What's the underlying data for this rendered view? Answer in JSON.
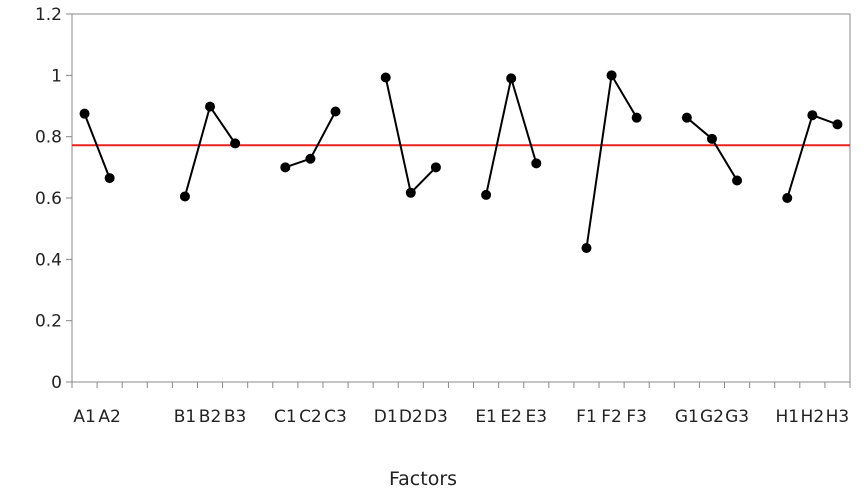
{
  "chart_data": {
    "type": "line",
    "title": "",
    "xlabel": "Factors",
    "ylabel": "",
    "ylim": [
      0,
      1.2
    ],
    "yticks": [
      "0",
      "0.2",
      "0.4",
      "0.6",
      "0.8",
      "1",
      "1.2"
    ],
    "grid": false,
    "legend": "none",
    "line_color": "#000000",
    "reference_line": {
      "value": 0.772,
      "color": "#e8231f"
    },
    "categories": [
      "A1",
      "A2",
      "",
      "",
      "B1",
      "B2",
      "B3",
      "",
      "C1",
      "C2",
      "C3",
      "",
      "D1",
      "D2",
      "D3",
      "",
      "E1",
      "E2",
      "E3",
      "",
      "F1",
      "F2",
      "F3",
      "",
      "G1",
      "G2",
      "G3",
      "",
      "H1",
      "H2",
      "H3"
    ],
    "groups": [
      {
        "labels": [
          "A1",
          "A2"
        ],
        "values": [
          0.875,
          0.665
        ]
      },
      {
        "labels": [
          "B1",
          "B2",
          "B3"
        ],
        "values": [
          0.605,
          0.898,
          0.778
        ]
      },
      {
        "labels": [
          "C1",
          "C2",
          "C3"
        ],
        "values": [
          0.7,
          0.728,
          0.882
        ]
      },
      {
        "labels": [
          "D1",
          "D2",
          "D3"
        ],
        "values": [
          0.993,
          0.617,
          0.7
        ]
      },
      {
        "labels": [
          "E1",
          "E2",
          "E3"
        ],
        "values": [
          0.61,
          0.99,
          0.713
        ]
      },
      {
        "labels": [
          "F1",
          "F2",
          "F3"
        ],
        "values": [
          0.437,
          1.0,
          0.862
        ]
      },
      {
        "labels": [
          "G1",
          "G2",
          "G3"
        ],
        "values": [
          0.862,
          0.793,
          0.657
        ]
      },
      {
        "labels": [
          "H1",
          "H2",
          "H3"
        ],
        "values": [
          0.6,
          0.87,
          0.84
        ]
      }
    ]
  }
}
